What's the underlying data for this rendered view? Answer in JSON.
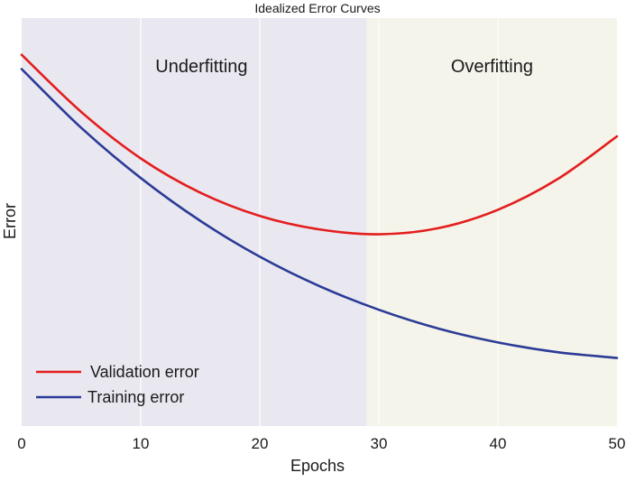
{
  "colors": {
    "underfit_region": "#e9e8f1",
    "overfit_region": "#f4f4ea",
    "grid": "#ffffff",
    "validation": "#e41e1e",
    "training": "#2b3b96",
    "text": "#1a1a1a"
  },
  "chart_data": {
    "type": "line",
    "title": "Idealized Error Curves",
    "xlabel": "Epochs",
    "ylabel": "Error",
    "xlim": [
      0,
      50
    ],
    "ylim": [
      0,
      1
    ],
    "x_ticks": [
      0,
      10,
      20,
      30,
      40,
      50
    ],
    "y_ticks": [],
    "grid": true,
    "legend": "bottom-left",
    "regions": [
      {
        "label": "Underfitting",
        "x_start": 0,
        "x_end": 29
      },
      {
        "label": "Overfitting",
        "x_start": 29,
        "x_end": 50
      }
    ],
    "series": [
      {
        "name": "Validation error",
        "x": [
          0,
          5,
          10,
          15,
          20,
          25,
          30,
          35,
          40,
          45,
          50
        ],
        "y": [
          0.91,
          0.77,
          0.656,
          0.572,
          0.515,
          0.482,
          0.47,
          0.485,
          0.53,
          0.605,
          0.71
        ]
      },
      {
        "name": "Training error",
        "x": [
          0,
          5,
          10,
          15,
          20,
          25,
          30,
          35,
          40,
          45,
          50
        ],
        "y": [
          0.875,
          0.731,
          0.608,
          0.503,
          0.415,
          0.343,
          0.285,
          0.239,
          0.205,
          0.181,
          0.167
        ]
      }
    ]
  }
}
